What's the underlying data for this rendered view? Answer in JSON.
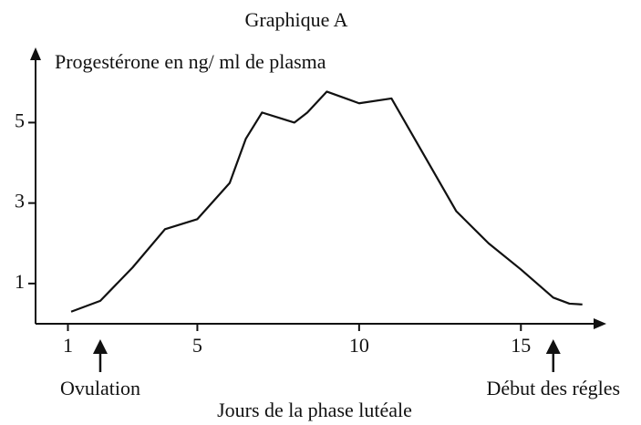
{
  "chart_data": {
    "type": "line",
    "title": "Graphique A",
    "y_label": "Progestérone en ng/ ml de plasma",
    "x_label": "Jours de la phase lutéale",
    "x": [
      1.1,
      2,
      3,
      4,
      5,
      6,
      6.5,
      7,
      8,
      8.4,
      9,
      10,
      11,
      12,
      13,
      14,
      15,
      16,
      16.5,
      16.9
    ],
    "series": [
      {
        "name": "Progestérone",
        "color": "#111111",
        "values": [
          0.3,
          0.57,
          1.4,
          2.35,
          2.6,
          3.5,
          4.6,
          5.25,
          5.0,
          5.25,
          5.77,
          5.48,
          5.6,
          4.2,
          2.8,
          2.0,
          1.35,
          0.65,
          0.5,
          0.48
        ]
      }
    ],
    "xlim": [
      0,
      17.5
    ],
    "ylim": [
      0,
      6.8
    ],
    "xticks": [
      1,
      5,
      10,
      15
    ],
    "yticks": [
      1,
      3,
      5
    ],
    "annotations": [
      {
        "text": "Ovulation",
        "x": 2
      },
      {
        "text": "Début des régles",
        "x": 16
      }
    ]
  }
}
